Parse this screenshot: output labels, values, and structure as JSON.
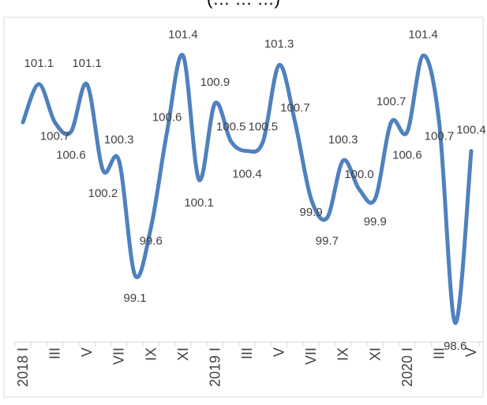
{
  "title": "(… … …)",
  "chart_data": {
    "type": "line",
    "title": "(… … …)",
    "xlabel": "",
    "ylabel": "",
    "ylim": [
      98.4,
      101.8
    ],
    "grid": false,
    "legend": "none",
    "color": "#4f81bd",
    "x": [
      "2018 I",
      "II",
      "III",
      "IV",
      "V",
      "VI",
      "VII",
      "VIII",
      "IX",
      "X",
      "XI",
      "XII",
      "2019 I",
      "II",
      "III",
      "IV",
      "V",
      "VI",
      "VII",
      "VIII",
      "IX",
      "X",
      "XI",
      "XII",
      "2020 I",
      "II",
      "III",
      "IV",
      "V"
    ],
    "values": [
      100.7,
      101.1,
      100.7,
      100.6,
      101.1,
      100.2,
      100.3,
      99.1,
      99.6,
      100.6,
      101.4,
      100.1,
      100.9,
      100.5,
      100.4,
      100.5,
      101.3,
      100.7,
      99.9,
      99.7,
      100.3,
      100.0,
      99.9,
      100.7,
      100.6,
      101.4,
      100.7,
      98.6,
      100.4
    ],
    "labels": [
      "",
      "101.1",
      "100.7",
      "100.6",
      "101.1",
      "100.2",
      "100.3",
      "99.1",
      "99.6",
      "100.6",
      "101.4",
      "100.1",
      "100.9",
      "100.5",
      "100.4",
      "100.5",
      "101.3",
      "100.7",
      "99.9",
      "99.7",
      "100.3",
      "100.0",
      "99.9",
      "100.7",
      "100.6",
      "101.4",
      "100.7",
      "98.6",
      "100.4"
    ],
    "x_tick_labels": [
      "2018 I",
      "III",
      "V",
      "VII",
      "IX",
      "XI",
      "2019 I",
      "III",
      "V",
      "VII",
      "IX",
      "XI",
      "2020 I",
      "III",
      "V"
    ]
  }
}
